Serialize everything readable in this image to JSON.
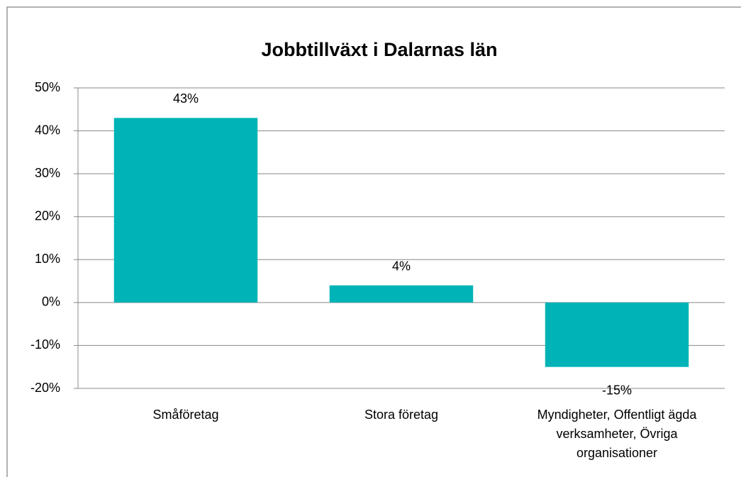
{
  "chart_data": {
    "type": "bar",
    "title": "Jobbtillväxt i Dalarnas län",
    "categories": [
      "Småföretag",
      "Stora företag",
      "Myndigheter, Offentligt ägda verksamheter, Övriga organisationer"
    ],
    "values": [
      43,
      4,
      -15
    ],
    "value_labels": [
      "43%",
      "4%",
      "-15%"
    ],
    "color": "#00b3b7",
    "ylim": [
      -20,
      50
    ],
    "yticks": [
      {
        "value": -20,
        "label": "-20%"
      },
      {
        "value": -10,
        "label": "-10%"
      },
      {
        "value": 0,
        "label": "0%"
      },
      {
        "value": 10,
        "label": "10%"
      },
      {
        "value": 20,
        "label": "20%"
      },
      {
        "value": 30,
        "label": "30%"
      },
      {
        "value": 40,
        "label": "40%"
      },
      {
        "value": 50,
        "label": "50%"
      }
    ],
    "grid": true
  }
}
